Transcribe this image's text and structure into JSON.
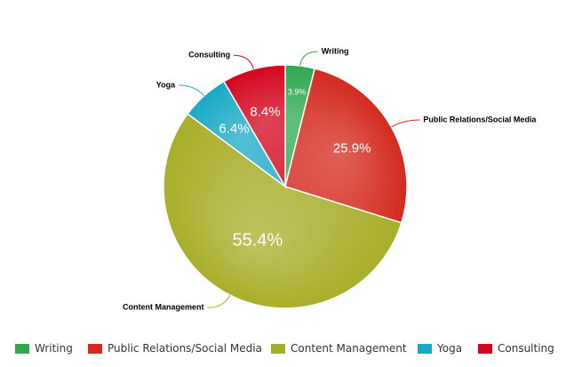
{
  "chart_data": {
    "type": "pie",
    "legend_position": "bottom",
    "slices": [
      {
        "name": "Writing",
        "value": 3.9,
        "label": "3.9%",
        "color": "#2fa84f"
      },
      {
        "name": "Public Relations/Social Media",
        "value": 25.9,
        "label": "25.9%",
        "color": "#d42a1f"
      },
      {
        "name": "Content Management",
        "value": 55.4,
        "label": "55.4%",
        "color": "#a9ae2a"
      },
      {
        "name": "Yoga",
        "value": 6.4,
        "label": "6.4%",
        "color": "#19a9c6"
      },
      {
        "name": "Consulting",
        "value": 8.4,
        "label": "8.4%",
        "color": "#d4061e"
      }
    ]
  }
}
